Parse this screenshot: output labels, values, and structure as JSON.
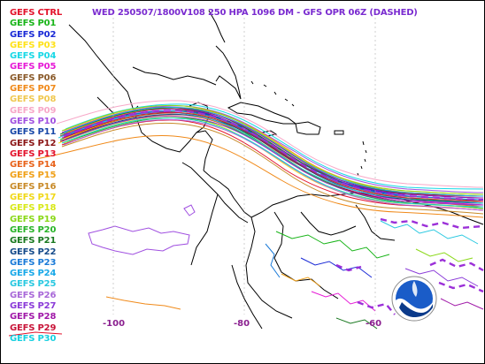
{
  "title": "WED 250507/1800V108  250 HPA 1096 DM - GFS OPR 06Z (DASHED)",
  "legend": [
    {
      "label": "GEFS CTRL",
      "color": "#e3122b"
    },
    {
      "label": "GEFS P01",
      "color": "#18b418"
    },
    {
      "label": "GEFS P02",
      "color": "#1a2ad6"
    },
    {
      "label": "GEFS P03",
      "color": "#ffe21a"
    },
    {
      "label": "GEFS P04",
      "color": "#18d8e6"
    },
    {
      "label": "GEFS P05",
      "color": "#e61ad6"
    },
    {
      "label": "GEFS P06",
      "color": "#8a5a2a"
    },
    {
      "label": "GEFS P07",
      "color": "#f08a1a"
    },
    {
      "label": "GEFS P08",
      "color": "#f0c850"
    },
    {
      "label": "GEFS P09",
      "color": "#f7a8c8"
    },
    {
      "label": "GEFS P10",
      "color": "#a050e0"
    },
    {
      "label": "GEFS P11",
      "color": "#1848a8"
    },
    {
      "label": "GEFS P12",
      "color": "#8a1414"
    },
    {
      "label": "GEFS P13",
      "color": "#e3122b"
    },
    {
      "label": "GEFS P14",
      "color": "#e8621a"
    },
    {
      "label": "GEFS P15",
      "color": "#f0a018"
    },
    {
      "label": "GEFS P16",
      "color": "#c88a28"
    },
    {
      "label": "GEFS P17",
      "color": "#f0d818"
    },
    {
      "label": "GEFS P18",
      "color": "#d8e818"
    },
    {
      "label": "GEFS P19",
      "color": "#8ad818"
    },
    {
      "label": "GEFS P20",
      "color": "#28b428"
    },
    {
      "label": "GEFS P21",
      "color": "#18781e"
    },
    {
      "label": "GEFS P22",
      "color": "#144a8a"
    },
    {
      "label": "GEFS P23",
      "color": "#1a7ad8"
    },
    {
      "label": "GEFS P24",
      "color": "#18a8e8"
    },
    {
      "label": "GEFS P25",
      "color": "#28c8e0"
    },
    {
      "label": "GEFS P26",
      "color": "#a868d8"
    },
    {
      "label": "GEFS P27",
      "color": "#8a3ad8"
    },
    {
      "label": "GEFS P28",
      "color": "#a018a8"
    },
    {
      "label": "GEFS P29",
      "color": "#c81438"
    },
    {
      "label": "GEFS P30",
      "color": "#18d0e0"
    }
  ],
  "longitude_labels": {
    "w100": "-100",
    "w80": "-80",
    "w60": "-60"
  },
  "logo_text": "NOAA",
  "colors": {
    "title": "#7a2bd0",
    "axis_labels": "#8a1f8f",
    "coastline": "#000000",
    "gfs_opr_dashed": "#9b30d8"
  }
}
